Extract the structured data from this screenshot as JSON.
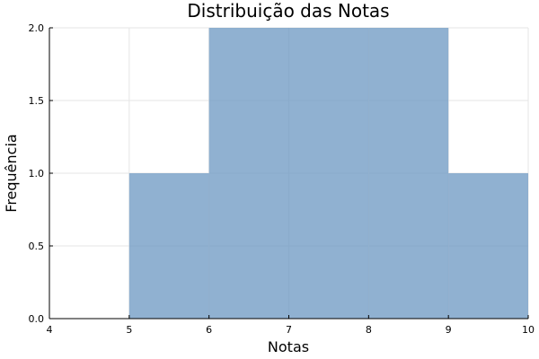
{
  "chart_data": {
    "type": "bar",
    "title": "Distribuição das Notas",
    "xlabel": "Notas",
    "ylabel": "Frequência",
    "xlim": [
      4,
      10
    ],
    "ylim": [
      0,
      2
    ],
    "x_ticks": [
      "4",
      "5",
      "6",
      "7",
      "8",
      "9",
      "10"
    ],
    "y_ticks": [
      "0.0",
      "0.5",
      "1.0",
      "1.5",
      "2.0"
    ],
    "bins": [
      {
        "start": 5,
        "end": 6,
        "count": 1
      },
      {
        "start": 6,
        "end": 7,
        "count": 2
      },
      {
        "start": 7,
        "end": 8,
        "count": 2
      },
      {
        "start": 8,
        "end": 9,
        "count": 2
      },
      {
        "start": 9,
        "end": 10,
        "count": 1
      }
    ],
    "bar_color": "#6b97c2",
    "bar_opacity": 0.75,
    "grid": true,
    "legend": "none"
  }
}
